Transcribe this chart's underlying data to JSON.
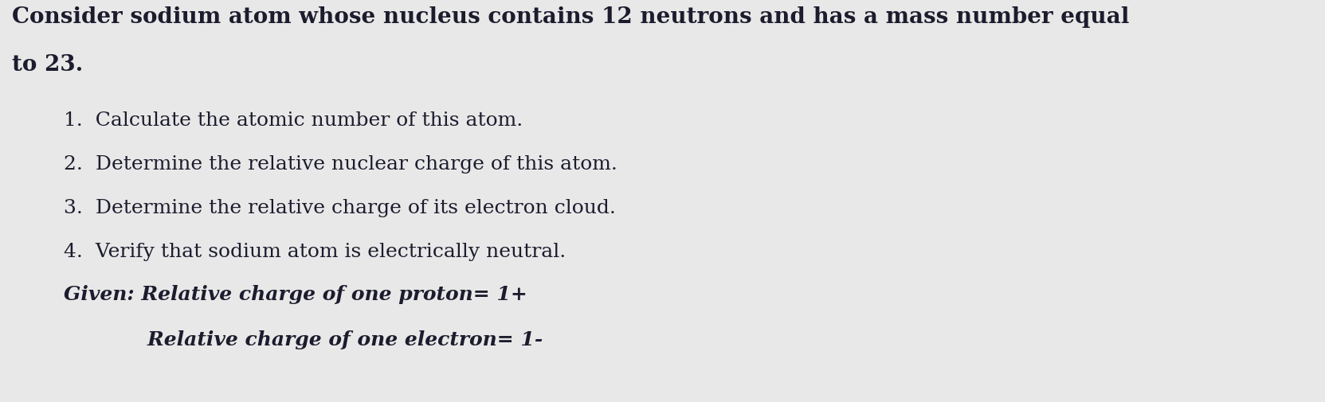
{
  "background_color": "#e8e8e8",
  "title_line1": "Consider sodium atom whose nucleus contains 12 neutrons and has a mass number equal",
  "title_line2": "to 23.",
  "items": [
    "1.  Calculate the atomic number of this atom.",
    "2.  Determine the relative nuclear charge of this atom.",
    "3.  Determine the relative charge of its electron cloud.",
    "4.  Verify that sodium atom is electrically neutral."
  ],
  "given_line1": "Given: Relative charge of one proton= 1+",
  "given_line2": "            Relative charge of one electron= 1-",
  "title_fontsize": 20,
  "item_fontsize": 18,
  "given_fontsize": 18,
  "text_color": "#1c1c2e",
  "figsize": [
    16.63,
    5.05
  ],
  "dpi": 100
}
